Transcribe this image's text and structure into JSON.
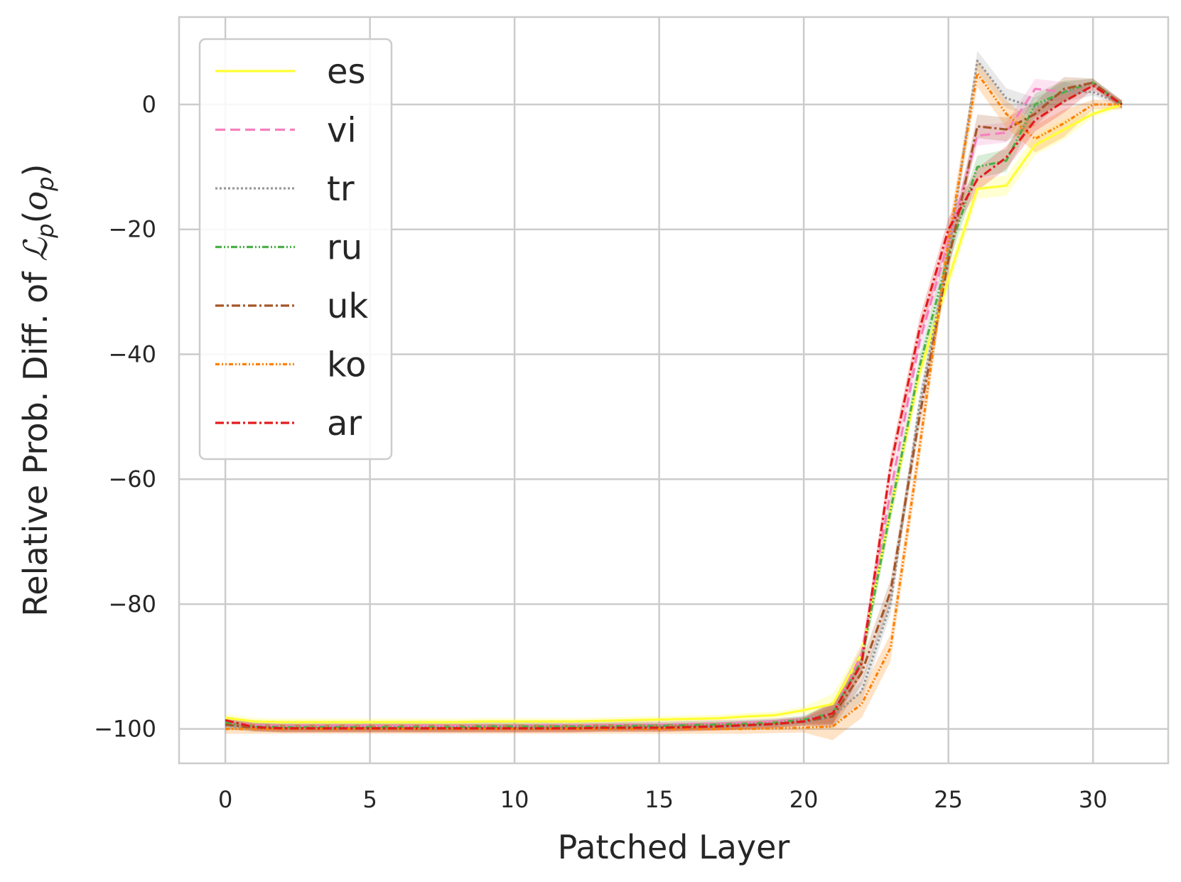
{
  "chart_data": {
    "type": "line",
    "title": "",
    "xlabel": "Patched Layer",
    "ylabel_prefix": "Relative Prob. Diff. of ",
    "ylabel_math": "ℒ",
    "ylabel_sub": "p",
    "ylabel_paren_open": "(",
    "ylabel_o": "o",
    "ylabel_paren_close": ")",
    "xlim": [
      -1.6,
      32.6
    ],
    "ylim": [
      -105.5,
      14
    ],
    "xticks": [
      0,
      5,
      10,
      15,
      20,
      25,
      30
    ],
    "xtick_labels": [
      "0",
      "5",
      "10",
      "15",
      "20",
      "25",
      "30"
    ],
    "yticks": [
      -100,
      -80,
      -60,
      -40,
      -20,
      0
    ],
    "ytick_labels": [
      "−100",
      "−80",
      "−60",
      "−40",
      "−20",
      "0"
    ],
    "grid": true,
    "legend_position": "top-left",
    "x": [
      0,
      1,
      2,
      3,
      4,
      5,
      6,
      7,
      8,
      9,
      10,
      11,
      12,
      13,
      14,
      15,
      16,
      17,
      18,
      19,
      20,
      21,
      22,
      23,
      24,
      25,
      26,
      27,
      28,
      29,
      30,
      31
    ],
    "series": [
      {
        "name": "es",
        "color": "#ffff33",
        "dash": "",
        "values": [
          -98.2,
          -98.8,
          -98.9,
          -98.9,
          -98.9,
          -98.9,
          -98.9,
          -98.9,
          -98.9,
          -98.8,
          -98.8,
          -98.8,
          -98.8,
          -98.7,
          -98.6,
          -98.5,
          -98.4,
          -98.3,
          -98.0,
          -97.8,
          -97.0,
          -96.0,
          -88.0,
          -65.0,
          -43.0,
          -28.0,
          -13.5,
          -13.0,
          -6.5,
          -4.0,
          -1.5,
          0.0
        ],
        "band": 1.6
      },
      {
        "name": "vi",
        "color": "#f781bf",
        "dash": "14 7",
        "values": [
          -99.0,
          -99.4,
          -99.5,
          -99.5,
          -99.5,
          -99.5,
          -99.5,
          -99.5,
          -99.5,
          -99.5,
          -99.5,
          -99.4,
          -99.4,
          -99.4,
          -99.3,
          -99.3,
          -99.2,
          -99.1,
          -99.0,
          -98.8,
          -98.5,
          -97.5,
          -88.0,
          -62.0,
          -38.0,
          -22.0,
          -5.0,
          -4.5,
          2.5,
          2.0,
          3.5,
          0.0
        ],
        "band": 1.6
      },
      {
        "name": "tr",
        "color": "#999999",
        "dash": "3 3",
        "values": [
          -99.5,
          -99.8,
          -99.9,
          -99.9,
          -99.9,
          -99.9,
          -99.9,
          -99.9,
          -99.9,
          -99.9,
          -99.9,
          -99.9,
          -99.9,
          -99.8,
          -99.8,
          -99.8,
          -99.7,
          -99.6,
          -99.5,
          -99.3,
          -99.0,
          -98.0,
          -94.0,
          -80.0,
          -48.0,
          -24.0,
          7.0,
          1.0,
          -0.5,
          2.0,
          2.0,
          0.0
        ],
        "band": 1.6
      },
      {
        "name": "ru",
        "color": "#4daf4a",
        "dash": "9 3 2 3 2 3",
        "values": [
          -99.0,
          -99.6,
          -99.7,
          -99.7,
          -99.7,
          -99.7,
          -99.7,
          -99.7,
          -99.7,
          -99.6,
          -99.6,
          -99.6,
          -99.6,
          -99.6,
          -99.5,
          -99.5,
          -99.4,
          -99.3,
          -99.2,
          -99.0,
          -98.5,
          -97.5,
          -89.0,
          -65.0,
          -42.0,
          -24.0,
          -10.0,
          -9.0,
          0.0,
          2.0,
          3.5,
          0.0
        ],
        "band": 1.8
      },
      {
        "name": "uk",
        "color": "#a65628",
        "dash": "12 4 3 4",
        "values": [
          -99.3,
          -99.8,
          -99.9,
          -99.9,
          -99.9,
          -99.9,
          -99.9,
          -99.9,
          -99.9,
          -99.9,
          -99.9,
          -99.9,
          -99.9,
          -99.8,
          -99.8,
          -99.8,
          -99.7,
          -99.6,
          -99.4,
          -99.2,
          -98.8,
          -98.0,
          -91.0,
          -78.0,
          -50.0,
          -25.0,
          -3.5,
          -4.0,
          -1.5,
          2.5,
          3.5,
          0.0
        ],
        "band": 1.9
      },
      {
        "name": "ko",
        "color": "#ff7f00",
        "dash": "6 3 2 3 2 3",
        "values": [
          -100.0,
          -100.0,
          -100.0,
          -100.0,
          -100.0,
          -100.0,
          -100.0,
          -100.0,
          -100.0,
          -100.0,
          -100.0,
          -100.0,
          -100.0,
          -100.0,
          -100.0,
          -100.0,
          -100.0,
          -100.0,
          -100.0,
          -99.9,
          -99.8,
          -99.6,
          -96.0,
          -87.0,
          -55.0,
          -22.0,
          5.0,
          -1.5,
          -5.5,
          -3.0,
          0.0,
          0.0
        ],
        "band": 2.2
      },
      {
        "name": "ar",
        "color": "#e41a1c",
        "dash": "12 4 3 4",
        "values": [
          -98.6,
          -99.7,
          -99.9,
          -99.9,
          -99.9,
          -99.9,
          -99.9,
          -99.9,
          -99.9,
          -99.9,
          -99.9,
          -99.9,
          -99.9,
          -99.8,
          -99.8,
          -99.8,
          -99.7,
          -99.6,
          -99.4,
          -99.2,
          -98.8,
          -97.5,
          -89.5,
          -58.0,
          -36.0,
          -20.0,
          -12.0,
          -8.5,
          -2.5,
          0.5,
          3.0,
          0.0
        ],
        "band": 1.8
      }
    ]
  }
}
